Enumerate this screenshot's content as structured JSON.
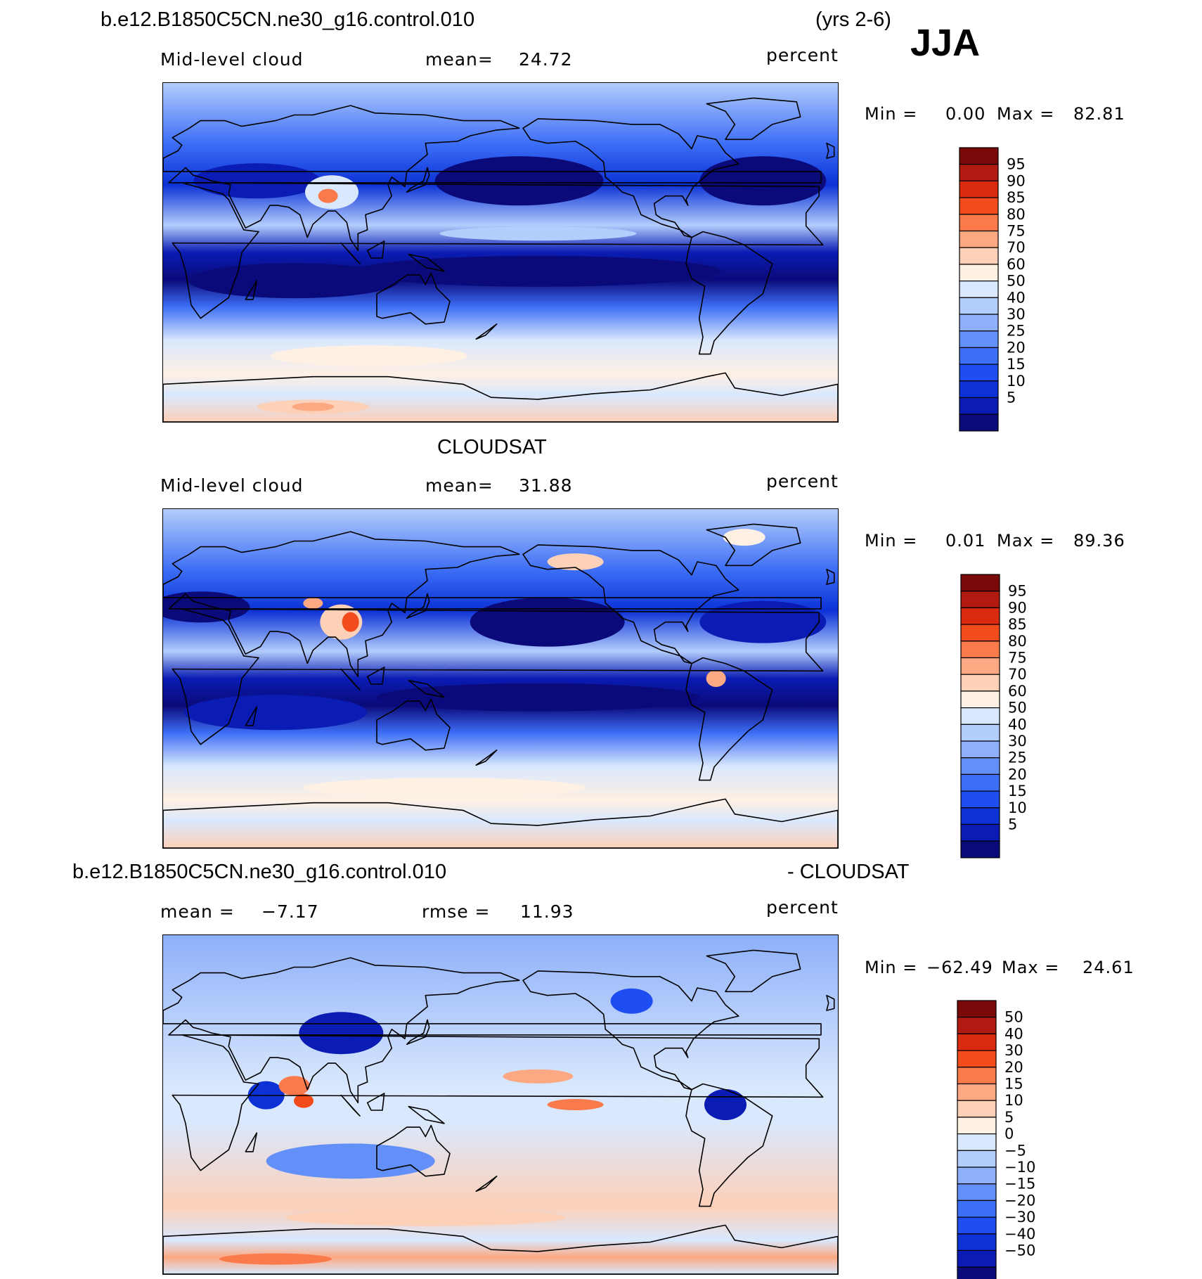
{
  "header": {
    "case_name": "b.e12.B1850C5CN.ne30_g16.control.010",
    "years": "(yrs 2-6)",
    "season": "JJA"
  },
  "colors": {
    "scale_pos": [
      "#0a0a7a",
      "#0a1cb4",
      "#0c32d6",
      "#1e4ef2",
      "#3d6ef6",
      "#6290f8",
      "#8eb0fa",
      "#b3cdfc",
      "#d9e8fd",
      "#fff0e4",
      "#fdd0b8",
      "#fca883",
      "#fb7a4c",
      "#f24c1c",
      "#d92a10",
      "#b01a10",
      "#7a0a0a"
    ],
    "scale_diff": [
      "#0a0a7a",
      "#0a1cb4",
      "#0c32d6",
      "#1e4ef2",
      "#3d6ef6",
      "#6290f8",
      "#8eb0fa",
      "#b3cdfc",
      "#d9e8fd",
      "#fff0e4",
      "#fdd0b8",
      "#fca883",
      "#fb7a4c",
      "#f24c1c",
      "#d92a10",
      "#b01a10",
      "#7a0a0a"
    ]
  },
  "chart_data": [
    {
      "type": "heatmap",
      "title": "b.e12.B1850C5CN.ne30_g16.control.010",
      "left_label": "Mid-level cloud",
      "mean_label": "mean=",
      "mean": "24.72",
      "units": "percent",
      "min_label": "Min =",
      "min": "0.00",
      "max_label": "Max =",
      "max": "82.81",
      "levels": [
        "95",
        "90",
        "85",
        "80",
        "75",
        "70",
        "60",
        "50",
        "40",
        "30",
        "25",
        "20",
        "15",
        "10",
        "5"
      ],
      "map": "world-cylindrical-equidistant-0E-centered-on-Pacific"
    },
    {
      "type": "heatmap",
      "title": "CLOUDSAT",
      "left_label": "Mid-level cloud",
      "mean_label": "mean=",
      "mean": "31.88",
      "units": "percent",
      "min_label": "Min =",
      "min": "0.01",
      "max_label": "Max =",
      "max": "89.36",
      "levels": [
        "95",
        "90",
        "85",
        "80",
        "75",
        "70",
        "60",
        "50",
        "40",
        "30",
        "25",
        "20",
        "15",
        "10",
        "5"
      ]
    },
    {
      "type": "heatmap",
      "title_left": "b.e12.B1850C5CN.ne30_g16.control.010",
      "title_right": "- CLOUDSAT",
      "mean_label": "mean =",
      "mean": "−7.17",
      "rmse_label": "rmse =",
      "rmse": "11.93",
      "units": "percent",
      "min_label": "Min =",
      "min": "−62.49",
      "max_label": "Max =",
      "max": "24.61",
      "levels": [
        "50",
        "40",
        "30",
        "20",
        "15",
        "10",
        "5",
        "0",
        "−5",
        "−10",
        "−15",
        "−20",
        "−30",
        "−40",
        "−50"
      ]
    }
  ]
}
